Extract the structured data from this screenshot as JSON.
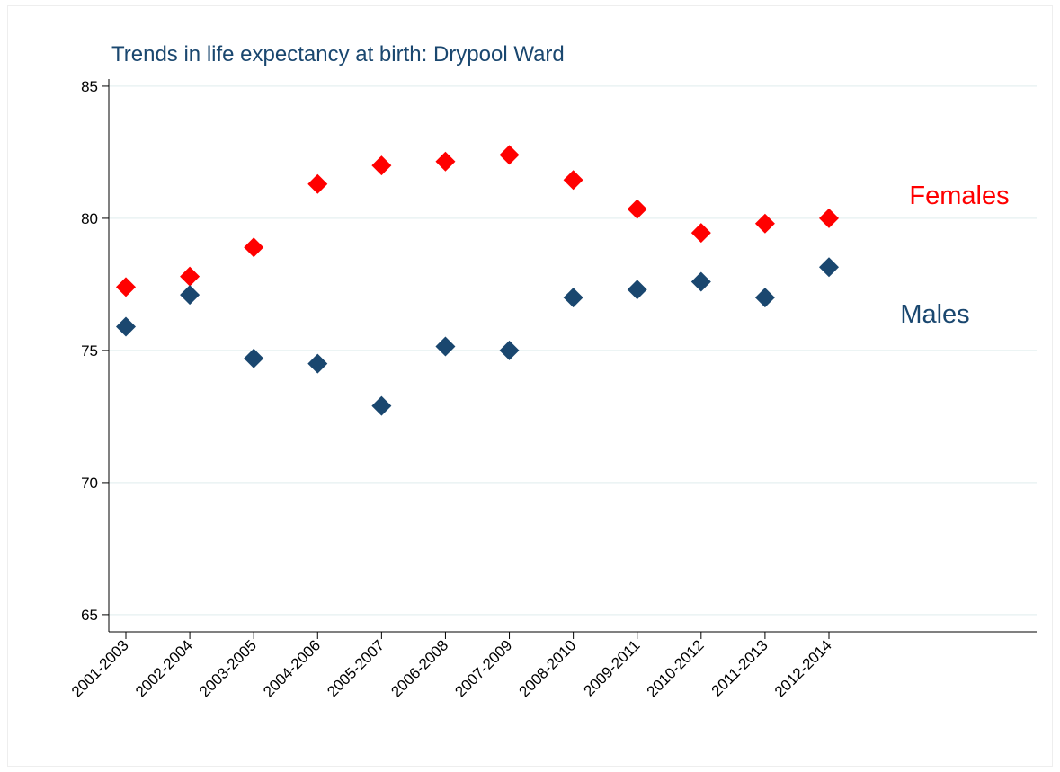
{
  "chart_data": {
    "type": "scatter",
    "title": "Trends in life expectancy at birth: Drypool Ward",
    "categories": [
      "2001-2003",
      "2002-2004",
      "2003-2005",
      "2004-2006",
      "2005-2007",
      "2006-2008",
      "2007-2009",
      "2008-2010",
      "2009-2011",
      "2010-2012",
      "2011-2013",
      "2012-2014"
    ],
    "series": [
      {
        "name": "Females",
        "color": "#ff0000",
        "values": [
          77.4,
          77.8,
          78.9,
          81.3,
          82.0,
          82.15,
          82.4,
          81.45,
          80.35,
          79.45,
          79.8,
          80.0
        ]
      },
      {
        "name": "Males",
        "color": "#1a476f",
        "values": [
          75.9,
          77.1,
          74.7,
          74.5,
          72.9,
          75.15,
          75.0,
          77.0,
          77.3,
          77.6,
          77.0,
          78.15
        ]
      }
    ],
    "ylim": [
      64.35,
      85.27
    ],
    "yticks": [
      65,
      70,
      75,
      80,
      85
    ],
    "grid": true
  }
}
